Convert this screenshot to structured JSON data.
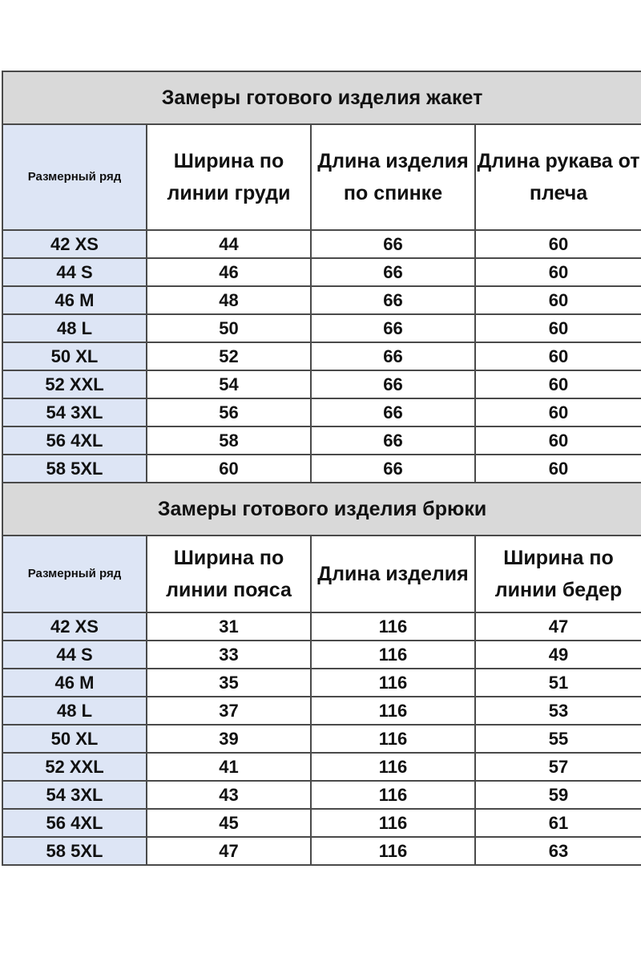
{
  "jacket": {
    "title": "Замеры готового изделия жакет",
    "headers": {
      "size": "Размерный ряд",
      "col1": "Ширина по линии груди",
      "col2": "Длина изделия по спинке",
      "col3": "Длина рукава от плеча"
    },
    "rows": [
      {
        "size": "42 XS",
        "c1": "44",
        "c2": "66",
        "c3": "60"
      },
      {
        "size": "44 S",
        "c1": "46",
        "c2": "66",
        "c3": "60"
      },
      {
        "size": "46 M",
        "c1": "48",
        "c2": "66",
        "c3": "60"
      },
      {
        "size": "48 L",
        "c1": "50",
        "c2": "66",
        "c3": "60"
      },
      {
        "size": "50 XL",
        "c1": "52",
        "c2": "66",
        "c3": "60"
      },
      {
        "size": "52 XXL",
        "c1": "54",
        "c2": "66",
        "c3": "60"
      },
      {
        "size": "54 3XL",
        "c1": "56",
        "c2": "66",
        "c3": "60"
      },
      {
        "size": "56 4XL",
        "c1": "58",
        "c2": "66",
        "c3": "60"
      },
      {
        "size": "58 5XL",
        "c1": "60",
        "c2": "66",
        "c3": "60"
      }
    ]
  },
  "pants": {
    "title": "Замеры готового изделия брюки",
    "headers": {
      "size": "Размерный ряд",
      "col1": "Ширина по линии пояса",
      "col2": "Длина изделия",
      "col3": "Ширина по линии бедер"
    },
    "rows": [
      {
        "size": "42 XS",
        "c1": "31",
        "c2": "116",
        "c3": "47"
      },
      {
        "size": "44 S",
        "c1": "33",
        "c2": "116",
        "c3": "49"
      },
      {
        "size": "46 M",
        "c1": "35",
        "c2": "116",
        "c3": "51"
      },
      {
        "size": "48 L",
        "c1": "37",
        "c2": "116",
        "c3": "53"
      },
      {
        "size": "50 XL",
        "c1": "39",
        "c2": "116",
        "c3": "55"
      },
      {
        "size": "52 XXL",
        "c1": "41",
        "c2": "116",
        "c3": "57"
      },
      {
        "size": "54 3XL",
        "c1": "43",
        "c2": "116",
        "c3": "59"
      },
      {
        "size": "56 4XL",
        "c1": "45",
        "c2": "116",
        "c3": "61"
      },
      {
        "size": "58 5XL",
        "c1": "47",
        "c2": "116",
        "c3": "63"
      }
    ]
  }
}
